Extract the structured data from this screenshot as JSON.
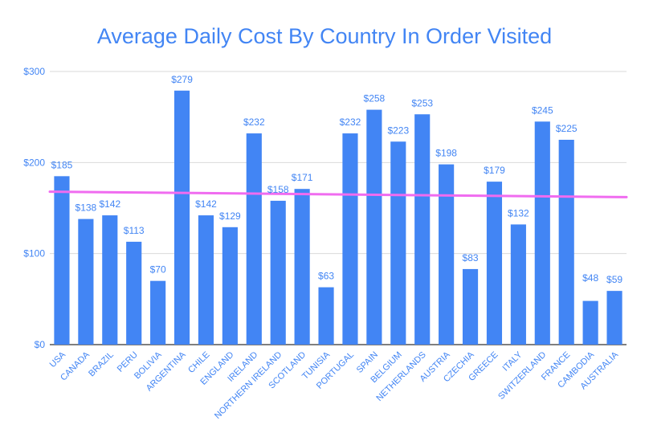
{
  "chart_data": {
    "type": "bar",
    "title": "Average Daily Cost By Country In Order Visited",
    "xlabel": "",
    "ylabel": "",
    "ylim": [
      0,
      300
    ],
    "yticks": [
      0,
      100,
      200,
      300
    ],
    "ytick_labels": [
      "$0",
      "$100",
      "$200",
      "$300"
    ],
    "grid": true,
    "legend": "none",
    "categories": [
      "USA",
      "CANADA",
      "BRAZIL",
      "PERU",
      "BOLIVIA",
      "ARGENTINA",
      "CHILE",
      "ENGLAND",
      "IRELAND",
      "NORTHERN IRELAND",
      "SCOTLAND",
      "TUNISIA",
      "PORTUGAL",
      "SPAIN",
      "BELGIUM",
      "NETHERLANDS",
      "AUSTRIA",
      "CZECHIA",
      "GREECE",
      "ITALY",
      "SWITZERLAND",
      "FRANCE",
      "CAMBODIA",
      "AUSTRALIA"
    ],
    "values": [
      185,
      138,
      142,
      113,
      70,
      279,
      142,
      129,
      232,
      158,
      171,
      63,
      232,
      258,
      223,
      253,
      198,
      83,
      179,
      132,
      245,
      225,
      48,
      59
    ],
    "data_labels": [
      "$185",
      "$138",
      "$142",
      "$113",
      "$70",
      "$279",
      "$142",
      "$129",
      "$232",
      "$158",
      "$171",
      "$63",
      "$232",
      "$258",
      "$223",
      "$253",
      "$198",
      "$83",
      "$179",
      "$132",
      "$245",
      "$225",
      "",
      "$59"
    ],
    "extra_labels": [
      {
        "text": "$48",
        "x": "CAMBODIA",
        "y": 66
      }
    ],
    "trendline": {
      "type": "linear",
      "start": 168,
      "end": 162
    },
    "colors": {
      "bar": "#4285f4",
      "text": "#4285f4",
      "trendline": "#f06cf0",
      "grid": "#d9d9d9",
      "axis": "#333333",
      "background": "#ffffff"
    }
  }
}
